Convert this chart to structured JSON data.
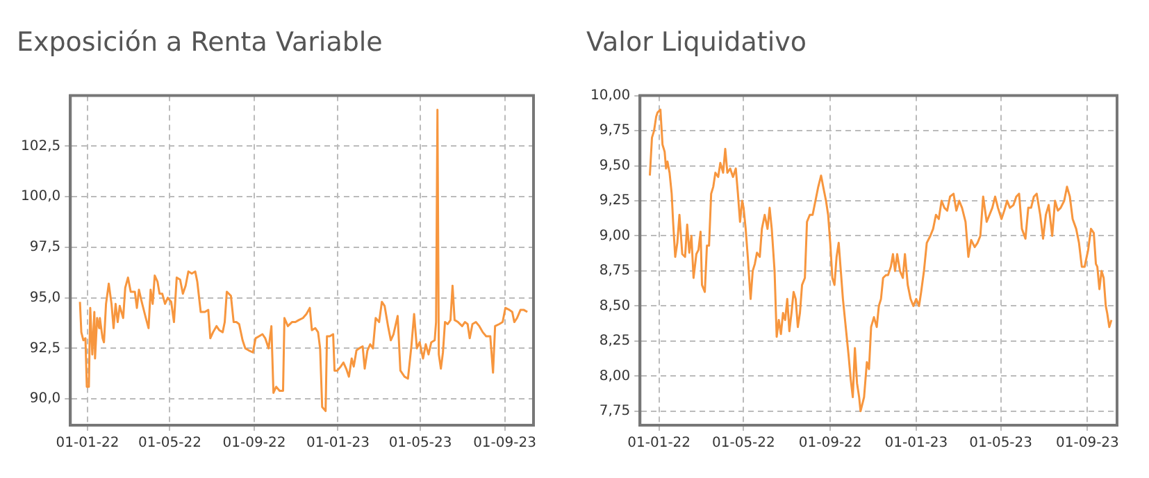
{
  "chart_data": [
    {
      "type": "line",
      "title": "Exposición a Renta Variable",
      "color": "#f7963e",
      "grid": true,
      "xlim": [
        "2021-12-07",
        "2023-10-13"
      ],
      "xticks": [
        {
          "value": "2022-01-01",
          "label": "01-01-22"
        },
        {
          "value": "2022-05-01",
          "label": "01-05-22"
        },
        {
          "value": "2022-09-01",
          "label": "01-09-22"
        },
        {
          "value": "2023-01-01",
          "label": "01-01-23"
        },
        {
          "value": "2023-05-01",
          "label": "01-05-23"
        },
        {
          "value": "2023-09-01",
          "label": "01-09-23"
        }
      ],
      "ylim": [
        88.7,
        105
      ],
      "yticks": [
        {
          "value": 90,
          "label": "90,0"
        },
        {
          "value": 92.5,
          "label": "92,5"
        },
        {
          "value": 95,
          "label": "95,0"
        },
        {
          "value": 97.5,
          "label": "97,5"
        },
        {
          "value": 100,
          "label": "100,0"
        },
        {
          "value": 102.5,
          "label": "102,5"
        }
      ],
      "x": [
        "2021-12-21",
        "2021-12-23",
        "2021-12-26",
        "2021-12-29",
        "2021-12-31",
        "2022-01-03",
        "2022-01-05",
        "2022-01-08",
        "2022-01-11",
        "2022-01-12",
        "2022-01-15",
        "2022-01-18",
        "2022-01-19",
        "2022-01-23",
        "2022-01-25",
        "2022-01-28",
        "2022-02-01",
        "2022-02-05",
        "2022-02-08",
        "2022-02-11",
        "2022-02-14",
        "2022-02-17",
        "2022-02-22",
        "2022-02-25",
        "2022-03-01",
        "2022-03-05",
        "2022-03-11",
        "2022-03-14",
        "2022-03-17",
        "2022-03-21",
        "2022-03-27",
        "2022-03-31",
        "2022-04-03",
        "2022-04-06",
        "2022-04-09",
        "2022-04-13",
        "2022-04-16",
        "2022-04-20",
        "2022-04-24",
        "2022-04-28",
        "2022-05-03",
        "2022-05-07",
        "2022-05-11",
        "2022-05-16",
        "2022-05-20",
        "2022-05-24",
        "2022-05-28",
        "2022-06-02",
        "2022-06-07",
        "2022-06-10",
        "2022-06-15",
        "2022-06-21",
        "2022-06-26",
        "2022-06-29",
        "2022-07-03",
        "2022-07-08",
        "2022-07-12",
        "2022-07-17",
        "2022-07-20",
        "2022-07-23",
        "2022-07-29",
        "2022-08-02",
        "2022-08-06",
        "2022-08-10",
        "2022-08-15",
        "2022-08-19",
        "2022-08-24",
        "2022-08-30",
        "2022-09-03",
        "2022-09-08",
        "2022-09-13",
        "2022-09-17",
        "2022-09-22",
        "2022-09-26",
        "2022-09-29",
        "2022-10-03",
        "2022-10-08",
        "2022-10-13",
        "2022-10-15",
        "2022-10-20",
        "2022-10-26",
        "2022-10-31",
        "2022-11-05",
        "2022-11-11",
        "2022-11-16",
        "2022-11-21",
        "2022-11-24",
        "2022-11-29",
        "2022-12-03",
        "2022-12-06",
        "2022-12-09",
        "2022-12-14",
        "2022-12-16",
        "2022-12-20",
        "2022-12-25",
        "2022-12-27",
        "2022-12-31",
        "2023-01-05",
        "2023-01-09",
        "2023-01-13",
        "2023-01-17",
        "2023-01-21",
        "2023-01-24",
        "2023-01-28",
        "2023-02-01",
        "2023-02-06",
        "2023-02-09",
        "2023-02-13",
        "2023-02-17",
        "2023-02-21",
        "2023-02-25",
        "2023-03-02",
        "2023-03-06",
        "2023-03-10",
        "2023-03-15",
        "2023-03-19",
        "2023-03-23",
        "2023-03-29",
        "2023-04-02",
        "2023-04-08",
        "2023-04-13",
        "2023-04-18",
        "2023-04-22",
        "2023-04-26",
        "2023-04-30",
        "2023-05-05",
        "2023-05-09",
        "2023-05-13",
        "2023-05-17",
        "2023-05-22",
        "2023-05-24",
        "2023-05-26",
        "2023-05-28",
        "2023-05-31",
        "2023-06-03",
        "2023-06-06",
        "2023-06-10",
        "2023-06-14",
        "2023-06-17",
        "2023-06-20",
        "2023-06-25",
        "2023-07-01",
        "2023-07-05",
        "2023-07-09",
        "2023-07-12",
        "2023-07-16",
        "2023-07-21",
        "2023-07-26",
        "2023-07-31",
        "2023-08-05",
        "2023-08-11",
        "2023-08-15",
        "2023-08-18",
        "2023-08-24",
        "2023-08-29",
        "2023-09-02",
        "2023-09-08",
        "2023-09-12",
        "2023-09-15",
        "2023-09-19",
        "2023-09-24",
        "2023-09-29",
        "2023-10-04"
      ],
      "values": [
        94.8,
        93.3,
        92.9,
        93.0,
        90.6,
        90.6,
        94.5,
        92.2,
        94.3,
        92.0,
        94.0,
        93.5,
        94.0,
        93.0,
        92.8,
        94.7,
        95.7,
        94.7,
        93.5,
        94.7,
        93.8,
        94.6,
        94.0,
        95.5,
        96.0,
        95.3,
        95.3,
        94.5,
        95.4,
        94.8,
        94.0,
        93.5,
        95.4,
        94.7,
        96.1,
        95.8,
        95.2,
        95.2,
        94.7,
        95.0,
        94.8,
        93.8,
        96.0,
        95.9,
        95.2,
        95.6,
        96.3,
        96.2,
        96.3,
        95.8,
        94.3,
        94.3,
        94.4,
        93.0,
        93.3,
        93.6,
        93.4,
        93.3,
        93.8,
        95.3,
        95.1,
        93.8,
        93.8,
        93.7,
        92.9,
        92.5,
        92.4,
        92.3,
        93.0,
        93.1,
        93.2,
        93.0,
        92.5,
        93.6,
        90.3,
        90.6,
        90.4,
        90.4,
        94.0,
        93.6,
        93.8,
        93.8,
        93.9,
        94.0,
        94.2,
        94.5,
        93.4,
        93.5,
        93.3,
        92.5,
        89.6,
        89.4,
        93.1,
        93.1,
        93.2,
        91.4,
        91.4,
        91.6,
        91.8,
        91.5,
        91.1,
        92.0,
        91.6,
        92.4,
        92.5,
        92.6,
        91.5,
        92.4,
        92.7,
        92.5,
        94.0,
        93.8,
        94.8,
        94.6,
        93.6,
        92.9,
        93.2,
        94.1,
        91.4,
        91.1,
        91.0,
        92.6,
        94.2,
        92.5,
        92.8,
        92.0,
        92.7,
        92.2,
        92.8,
        92.9,
        93.8,
        104.3,
        92.2,
        91.5,
        92.3,
        93.8,
        93.7,
        93.9,
        95.6,
        93.9,
        93.8,
        93.6,
        93.8,
        93.7,
        93.0,
        93.7,
        93.8,
        93.6,
        93.3,
        93.1,
        93.1,
        91.3,
        93.6,
        93.7,
        93.8,
        94.5,
        94.4,
        94.3,
        93.8,
        94.0,
        94.4,
        94.4,
        94.3
      ]
    },
    {
      "type": "line",
      "title": "Valor Liquidativo",
      "color": "#f7963e",
      "grid": true,
      "xlim": [
        "2021-12-05",
        "2023-10-13"
      ],
      "xticks": [
        {
          "value": "2022-01-01",
          "label": "01-01-22"
        },
        {
          "value": "2022-05-01",
          "label": "01-05-22"
        },
        {
          "value": "2022-09-01",
          "label": "01-09-22"
        },
        {
          "value": "2023-01-01",
          "label": "01-01-23"
        },
        {
          "value": "2023-05-01",
          "label": "01-05-23"
        },
        {
          "value": "2023-09-01",
          "label": "01-09-23"
        }
      ],
      "ylim": [
        7.65,
        10.0
      ],
      "yticks": [
        {
          "value": 7.75,
          "label": "7,75"
        },
        {
          "value": 8,
          "label": "8,00"
        },
        {
          "value": 8.25,
          "label": "8,25"
        },
        {
          "value": 8.5,
          "label": "8,50"
        },
        {
          "value": 8.75,
          "label": "8,75"
        },
        {
          "value": 9,
          "label": "9,00"
        },
        {
          "value": 9.25,
          "label": "9,25"
        },
        {
          "value": 9.5,
          "label": "9,50"
        },
        {
          "value": 9.75,
          "label": "9,75"
        },
        {
          "value": 10,
          "label": "10,00"
        }
      ],
      "x": [
        "2021-12-19",
        "2021-12-22",
        "2021-12-25",
        "2021-12-28",
        "2021-12-30",
        "2022-01-03",
        "2022-01-06",
        "2022-01-09",
        "2022-01-11",
        "2022-01-13",
        "2022-01-16",
        "2022-01-19",
        "2022-01-21",
        "2022-01-24",
        "2022-01-27",
        "2022-01-30",
        "2022-02-03",
        "2022-02-07",
        "2022-02-10",
        "2022-02-13",
        "2022-02-16",
        "2022-02-19",
        "2022-02-23",
        "2022-02-26",
        "2022-03-01",
        "2022-03-03",
        "2022-03-07",
        "2022-03-10",
        "2022-03-13",
        "2022-03-16",
        "2022-03-19",
        "2022-03-22",
        "2022-03-26",
        "2022-03-29",
        "2022-04-02",
        "2022-04-05",
        "2022-04-08",
        "2022-04-12",
        "2022-04-16",
        "2022-04-20",
        "2022-04-23",
        "2022-04-26",
        "2022-04-29",
        "2022-05-01",
        "2022-05-04",
        "2022-05-07",
        "2022-05-11",
        "2022-05-14",
        "2022-05-17",
        "2022-05-20",
        "2022-05-24",
        "2022-05-27",
        "2022-05-31",
        "2022-06-04",
        "2022-06-07",
        "2022-06-10",
        "2022-06-14",
        "2022-06-17",
        "2022-06-20",
        "2022-06-23",
        "2022-06-26",
        "2022-06-29",
        "2022-07-02",
        "2022-07-05",
        "2022-07-08",
        "2022-07-11",
        "2022-07-14",
        "2022-07-17",
        "2022-07-20",
        "2022-07-23",
        "2022-07-27",
        "2022-07-30",
        "2022-08-03",
        "2022-08-07",
        "2022-08-11",
        "2022-08-15",
        "2022-08-19",
        "2022-08-22",
        "2022-08-26",
        "2022-08-29",
        "2022-09-01",
        "2022-09-04",
        "2022-09-07",
        "2022-09-10",
        "2022-09-13",
        "2022-09-16",
        "2022-09-19",
        "2022-09-23",
        "2022-09-27",
        "2022-09-30",
        "2022-10-03",
        "2022-10-06",
        "2022-10-09",
        "2022-10-12",
        "2022-10-14",
        "2022-10-19",
        "2022-10-23",
        "2022-10-26",
        "2022-10-29",
        "2022-11-02",
        "2022-11-06",
        "2022-11-09",
        "2022-11-12",
        "2022-11-15",
        "2022-11-19",
        "2022-11-22",
        "2022-11-26",
        "2022-11-29",
        "2022-12-02",
        "2022-12-05",
        "2022-12-09",
        "2022-12-13",
        "2022-12-16",
        "2022-12-20",
        "2022-12-24",
        "2022-12-28",
        "2023-01-01",
        "2023-01-05",
        "2023-01-08",
        "2023-01-12",
        "2023-01-16",
        "2023-01-21",
        "2023-01-25",
        "2023-01-29",
        "2023-02-02",
        "2023-02-06",
        "2023-02-10",
        "2023-02-14",
        "2023-02-18",
        "2023-02-23",
        "2023-02-27",
        "2023-03-03",
        "2023-03-07",
        "2023-03-12",
        "2023-03-16",
        "2023-03-20",
        "2023-03-25",
        "2023-03-29",
        "2023-04-02",
        "2023-04-06",
        "2023-04-11",
        "2023-04-15",
        "2023-04-19",
        "2023-04-23",
        "2023-04-27",
        "2023-05-02",
        "2023-05-06",
        "2023-05-10",
        "2023-05-14",
        "2023-05-19",
        "2023-05-23",
        "2023-05-27",
        "2023-05-31",
        "2023-06-05",
        "2023-06-09",
        "2023-06-13",
        "2023-06-17",
        "2023-06-21",
        "2023-06-26",
        "2023-06-30",
        "2023-07-04",
        "2023-07-08",
        "2023-07-13",
        "2023-07-17",
        "2023-07-21",
        "2023-07-25",
        "2023-07-30",
        "2023-08-03",
        "2023-08-07",
        "2023-08-11",
        "2023-08-16",
        "2023-08-20",
        "2023-08-24",
        "2023-08-28",
        "2023-09-02",
        "2023-09-06",
        "2023-09-10",
        "2023-09-13",
        "2023-09-15",
        "2023-09-18",
        "2023-09-21",
        "2023-09-24",
        "2023-09-27",
        "2023-09-29",
        "2023-10-02",
        "2023-10-05"
      ],
      "values": [
        9.43,
        9.7,
        9.75,
        9.85,
        9.88,
        9.9,
        9.65,
        9.6,
        9.48,
        9.53,
        9.45,
        9.3,
        9.1,
        8.85,
        8.95,
        9.15,
        8.87,
        8.85,
        9.08,
        8.88,
        9.0,
        8.7,
        8.87,
        8.9,
        9.03,
        8.65,
        8.6,
        8.93,
        8.93,
        9.3,
        9.35,
        9.45,
        9.42,
        9.52,
        9.45,
        9.62,
        9.45,
        9.48,
        9.42,
        9.48,
        9.3,
        9.1,
        9.25,
        9.2,
        9.05,
        8.85,
        8.55,
        8.75,
        8.8,
        8.88,
        8.85,
        9.05,
        9.15,
        9.05,
        9.2,
        9.05,
        8.75,
        8.28,
        8.4,
        8.3,
        8.45,
        8.4,
        8.55,
        8.32,
        8.45,
        8.6,
        8.55,
        8.35,
        8.45,
        8.65,
        8.7,
        9.1,
        9.15,
        9.15,
        9.25,
        9.35,
        9.43,
        9.35,
        9.25,
        9.15,
        8.95,
        8.7,
        8.65,
        8.85,
        8.95,
        8.75,
        8.55,
        8.35,
        8.15,
        7.98,
        7.85,
        8.2,
        7.95,
        7.85,
        7.75,
        7.85,
        8.1,
        8.05,
        8.35,
        8.42,
        8.35,
        8.5,
        8.55,
        8.7,
        8.72,
        8.72,
        8.78,
        8.87,
        8.75,
        8.87,
        8.75,
        8.7,
        8.87,
        8.65,
        8.55,
        8.5,
        8.55,
        8.5,
        8.6,
        8.75,
        8.95,
        9.0,
        9.05,
        9.15,
        9.12,
        9.25,
        9.2,
        9.18,
        9.28,
        9.3,
        9.18,
        9.25,
        9.2,
        9.1,
        8.85,
        8.97,
        8.92,
        8.95,
        9.0,
        9.28,
        9.1,
        9.15,
        9.2,
        9.28,
        9.2,
        9.12,
        9.18,
        9.25,
        9.2,
        9.22,
        9.28,
        9.3,
        9.05,
        8.98,
        9.2,
        9.2,
        9.28,
        9.3,
        9.15,
        8.98,
        9.15,
        9.22,
        9.0,
        9.25,
        9.18,
        9.2,
        9.25,
        9.35,
        9.28,
        9.12,
        9.05,
        8.95,
        8.78,
        8.78,
        8.9,
        9.05,
        9.02,
        8.8,
        8.78,
        8.62,
        8.75,
        8.7,
        8.5,
        8.45,
        8.35,
        8.4
      ]
    }
  ]
}
